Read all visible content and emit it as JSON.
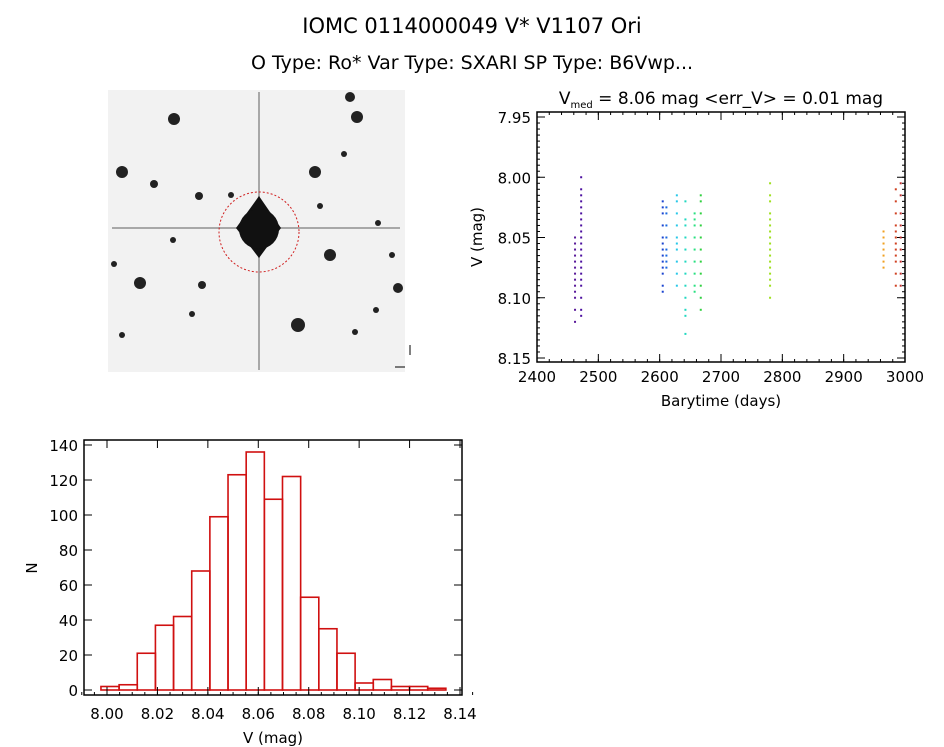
{
  "header": {
    "title": "IOMC 0114000049     V* V1107 Ori",
    "subtitle": "O Type: Ro*  Var Type: SXARI  SP Type: B6Vwp..."
  },
  "colors": {
    "histogram": "#d01010",
    "circle": "#d02020"
  },
  "chart_data": [
    {
      "type": "image",
      "marker": "red dashed circle around central star"
    },
    {
      "type": "scatter",
      "title_main": "V",
      "title_sub": "med",
      "title_rest": " = 8.06 mag <err_V> = 0.01 mag",
      "xlabel": "Barytime (days)",
      "ylabel": "V (mag)",
      "xlim": [
        2400,
        3000
      ],
      "ylim": [
        8.15,
        7.95
      ],
      "y_inverted": true,
      "xticks": [
        "2400",
        "2500",
        "2600",
        "2700",
        "2800",
        "2900",
        "3000"
      ],
      "yticks": [
        "7.95",
        "8.00",
        "8.05",
        "8.10",
        "8.15"
      ],
      "series": [
        {
          "x": 2462,
          "color": "#5a1a9a",
          "y": [
            8.05,
            8.055,
            8.06,
            8.065,
            8.07,
            8.075,
            8.08,
            8.085,
            8.09,
            8.095,
            8.1,
            8.11,
            8.12
          ]
        },
        {
          "x": 2472,
          "color": "#4b0f9f",
          "y": [
            8.0,
            8.01,
            8.015,
            8.02,
            8.025,
            8.03,
            8.035,
            8.04,
            8.045,
            8.05,
            8.055,
            8.06,
            8.065,
            8.07,
            8.075,
            8.08,
            8.085,
            8.09,
            8.1,
            8.11,
            8.115
          ]
        },
        {
          "x": 2605,
          "color": "#1a44d0",
          "y": [
            8.02,
            8.025,
            8.03,
            8.04,
            8.05,
            8.055,
            8.06,
            8.065,
            8.07,
            8.075,
            8.08,
            8.09,
            8.095
          ]
        },
        {
          "x": 2611,
          "color": "#1a6ae0",
          "y": [
            8.025,
            8.03,
            8.04,
            8.05,
            8.06,
            8.065,
            8.07,
            8.075
          ]
        },
        {
          "x": 2628,
          "color": "#28c8e8",
          "y": [
            8.015,
            8.02,
            8.03,
            8.04,
            8.05,
            8.055,
            8.06,
            8.07,
            8.08,
            8.09
          ]
        },
        {
          "x": 2642,
          "color": "#20d8c0",
          "y": [
            8.02,
            8.035,
            8.04,
            8.05,
            8.06,
            8.07,
            8.08,
            8.09,
            8.1,
            8.11,
            8.115,
            8.13
          ]
        },
        {
          "x": 2657,
          "color": "#28e080",
          "y": [
            8.03,
            8.035,
            8.04,
            8.05,
            8.06,
            8.07,
            8.08,
            8.09,
            8.095
          ]
        },
        {
          "x": 2667,
          "color": "#30d040",
          "y": [
            8.015,
            8.02,
            8.03,
            8.04,
            8.05,
            8.06,
            8.07,
            8.08,
            8.09,
            8.1,
            8.11
          ]
        },
        {
          "x": 2780,
          "color": "#a0e020",
          "y": [
            8.005,
            8.015,
            8.02,
            8.03,
            8.035,
            8.04,
            8.045,
            8.05,
            8.055,
            8.06,
            8.065,
            8.07,
            8.075,
            8.08,
            8.085,
            8.09,
            8.1
          ]
        },
        {
          "x": 2965,
          "color": "#f0a020",
          "y": [
            8.045,
            8.05,
            8.055,
            8.06,
            8.065,
            8.07,
            8.075
          ]
        },
        {
          "x": 2985,
          "color": "#d04020",
          "y": [
            8.01,
            8.02,
            8.03,
            8.04,
            8.045,
            8.05,
            8.055,
            8.06,
            8.065,
            8.07,
            8.08,
            8.09
          ]
        },
        {
          "x": 2993,
          "color": "#c03030",
          "y": [
            8.005,
            8.015,
            8.03,
            8.04,
            8.05,
            8.06,
            8.07,
            8.08,
            8.09
          ]
        }
      ]
    },
    {
      "type": "bar",
      "xlabel": "V (mag)",
      "ylabel": "N",
      "xlim": [
        7.99,
        8.145
      ],
      "ylim": [
        0,
        145
      ],
      "xticks": [
        "8.00",
        "8.02",
        "8.04",
        "8.06",
        "8.08",
        "8.10",
        "8.12",
        "8.14"
      ],
      "yticks": [
        "0",
        "20",
        "40",
        "60",
        "80",
        "100",
        "120",
        "140"
      ],
      "bin_start": 7.9976,
      "bin_width": 0.0072,
      "values": [
        2,
        3,
        21,
        37,
        42,
        68,
        99,
        123,
        136,
        109,
        122,
        53,
        35,
        21,
        4,
        6,
        2,
        2,
        1
      ]
    }
  ]
}
